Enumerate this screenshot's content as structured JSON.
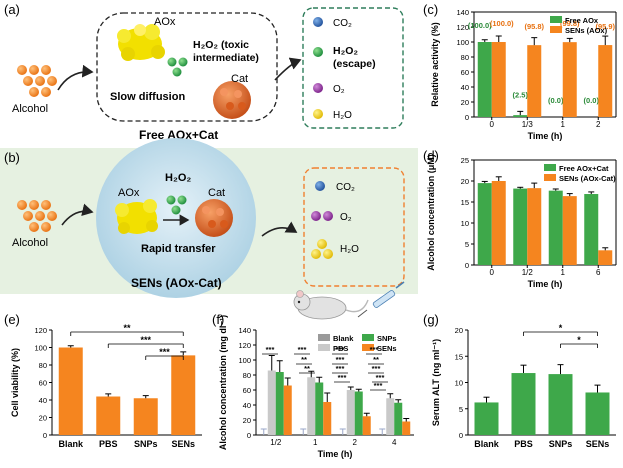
{
  "panel_a": {
    "label": "(a)",
    "alcohol": "Alcohol",
    "aox": "AOx",
    "h2o2_line1": "H₂O₂ (toxic",
    "h2o2_line2": "intermediate)",
    "cat": "Cat",
    "slow": "Slow diffusion",
    "caption": "Free AOx+Cat",
    "products": [
      "CO₂",
      "H₂O₂",
      "(escape)",
      "O₂",
      "H₂O"
    ]
  },
  "panel_b": {
    "label": "(b)",
    "alcohol": "Alcohol",
    "h2o2": "H₂O₂",
    "aox": "AOx",
    "cat": "Cat",
    "rapid": "Rapid transfer",
    "caption": "SENs (AOx-Cat)",
    "products": [
      "CO₂",
      "O₂",
      "H₂O"
    ]
  },
  "colors": {
    "orange": "#f5851f",
    "green": "#3ea84a",
    "gray": "#9a9a9a",
    "lightgray": "#c9c9c9",
    "panel_b_bg": "#e6f1e1",
    "sen_circle": "#bcd9e8",
    "dashed_green": "#2e7d5b",
    "dashed_orange": "#f08030",
    "aox_yellow": "#f2e000",
    "cat_orange": "#e86a2a"
  },
  "chart_data": [
    {
      "id": "c",
      "label": "(c)",
      "type": "bar",
      "ylabel": "Relative activity (%)",
      "xlabel": "Time (h)",
      "ylim": [
        0,
        140
      ],
      "yticks": [
        0,
        20,
        40,
        60,
        80,
        100,
        120,
        140
      ],
      "categories": [
        "0",
        "1/3",
        "1",
        "2"
      ],
      "series": [
        {
          "name": "Free AOx",
          "values": [
            100.0,
            2.5,
            0.0,
            0.0
          ],
          "errors": [
            3,
            5,
            0,
            0
          ],
          "labels": [
            "(100.0)",
            "(2.5)",
            "(0.0)",
            "(0.0)"
          ]
        },
        {
          "name": "SENs (AOx)",
          "values": [
            100.0,
            95.8,
            99.8,
            95.9
          ],
          "errors": [
            8,
            10,
            5,
            12
          ],
          "labels": [
            "(100.0)",
            "(95.8)",
            "(99.8)",
            "(95.9)"
          ]
        }
      ],
      "legend": "top-right"
    },
    {
      "id": "d",
      "label": "(d)",
      "type": "bar",
      "ylabel": "Alcohol concentration (μM)",
      "xlabel": "Time (h)",
      "ylim": [
        0,
        25
      ],
      "yticks": [
        0,
        5,
        10,
        15,
        20,
        25
      ],
      "categories": [
        "0",
        "1/2",
        "1",
        "6"
      ],
      "series": [
        {
          "name": "Free AOx+Cat",
          "values": [
            19.5,
            18.2,
            17.7,
            16.9
          ],
          "errors": [
            0.4,
            0.3,
            0.4,
            0.5
          ]
        },
        {
          "name": "SENs (AOx-Cat)",
          "values": [
            20.0,
            18.3,
            16.4,
            3.5
          ],
          "errors": [
            1.0,
            1.2,
            0.6,
            0.6
          ]
        }
      ],
      "legend": "top-right"
    },
    {
      "id": "e",
      "label": "(e)",
      "type": "bar",
      "ylabel": "Cell viability (%)",
      "xlabel": "",
      "ylim": [
        0,
        120
      ],
      "yticks": [
        0,
        20,
        40,
        60,
        80,
        100,
        120
      ],
      "categories": [
        "Blank",
        "PBS",
        "SNPs",
        "SENs"
      ],
      "values": [
        100,
        44,
        42,
        91
      ],
      "errors": [
        2,
        3,
        3,
        4
      ],
      "significance": [
        {
          "from": 0,
          "to": 3,
          "text": "**"
        },
        {
          "from": 1,
          "to": 3,
          "text": "***"
        },
        {
          "from": 2,
          "to": 3,
          "text": "***"
        }
      ]
    },
    {
      "id": "f",
      "label": "(f)",
      "type": "bar",
      "ylabel": "Alcohol concentration (mg dl⁻¹)",
      "xlabel": "Time (h)",
      "ylim": [
        0,
        140
      ],
      "yticks": [
        0,
        20,
        40,
        60,
        80,
        100,
        120,
        140
      ],
      "categories": [
        "1/2",
        "1",
        "2",
        "4"
      ],
      "series": [
        {
          "name": "Blank",
          "values": [
            0,
            0,
            0,
            0
          ],
          "errors": [
            8,
            8,
            8,
            8
          ]
        },
        {
          "name": "PBS",
          "values": [
            86,
            77,
            60,
            49
          ],
          "errors": [
            20,
            8,
            4,
            6
          ]
        },
        {
          "name": "SNPs",
          "values": [
            84,
            70,
            58,
            43
          ],
          "errors": [
            15,
            7,
            3,
            4
          ]
        },
        {
          "name": "SENs",
          "values": [
            66,
            44,
            25,
            18
          ],
          "errors": [
            10,
            12,
            4,
            4
          ]
        }
      ],
      "significance_marks": [
        "***",
        "***",
        "**",
        "**",
        "***",
        "***",
        "***",
        "***",
        "***",
        "**",
        "***",
        "***",
        "***"
      ]
    },
    {
      "id": "g",
      "label": "(g)",
      "type": "bar",
      "ylabel": "Serum ALT (ng ml⁻¹)",
      "xlabel": "",
      "ylim": [
        0,
        20
      ],
      "yticks": [
        0,
        5,
        10,
        15,
        20
      ],
      "categories": [
        "Blank",
        "PBS",
        "SNPs",
        "SENs"
      ],
      "values": [
        6.2,
        11.8,
        11.6,
        8.1
      ],
      "errors": [
        1.0,
        1.5,
        1.8,
        1.4
      ],
      "significance": [
        {
          "from": 1,
          "to": 3,
          "text": "*"
        },
        {
          "from": 2,
          "to": 3,
          "text": "*"
        }
      ]
    }
  ]
}
